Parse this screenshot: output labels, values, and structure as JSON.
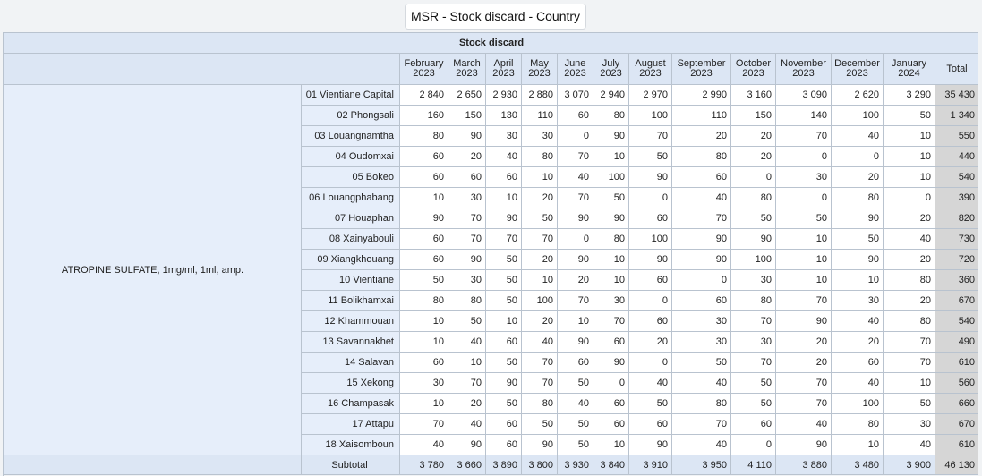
{
  "title": "MSR - Stock discard - Country",
  "table": {
    "group_header": "Stock discard",
    "months": [
      [
        "February",
        "2023"
      ],
      [
        "March",
        "2023"
      ],
      [
        "April",
        "2023"
      ],
      [
        "May",
        "2023"
      ],
      [
        "June",
        "2023"
      ],
      [
        "July",
        "2023"
      ],
      [
        "August",
        "2023"
      ],
      [
        "September",
        "2023"
      ],
      [
        "October",
        "2023"
      ],
      [
        "November",
        "2023"
      ],
      [
        "December",
        "2023"
      ],
      [
        "January",
        "2024"
      ]
    ],
    "total_label": "Total",
    "item": "ATROPINE SULFATE, 1mg/ml, 1ml, amp.",
    "rows": [
      {
        "district": "01 Vientiane Capital",
        "values": [
          "2 840",
          "2 650",
          "2 930",
          "2 880",
          "3 070",
          "2 940",
          "2 970",
          "2 990",
          "3 160",
          "3 090",
          "2 620",
          "3 290"
        ],
        "total": "35 430"
      },
      {
        "district": "02 Phongsali",
        "values": [
          "160",
          "150",
          "130",
          "110",
          "60",
          "80",
          "100",
          "110",
          "150",
          "140",
          "100",
          "50"
        ],
        "total": "1 340"
      },
      {
        "district": "03 Louangnamtha",
        "values": [
          "80",
          "90",
          "30",
          "30",
          "0",
          "90",
          "70",
          "20",
          "20",
          "70",
          "40",
          "10"
        ],
        "total": "550"
      },
      {
        "district": "04 Oudomxai",
        "values": [
          "60",
          "20",
          "40",
          "80",
          "70",
          "10",
          "50",
          "80",
          "20",
          "0",
          "0",
          "10"
        ],
        "total": "440"
      },
      {
        "district": "05 Bokeo",
        "values": [
          "60",
          "60",
          "60",
          "10",
          "40",
          "100",
          "90",
          "60",
          "0",
          "30",
          "20",
          "10"
        ],
        "total": "540"
      },
      {
        "district": "06 Louangphabang",
        "values": [
          "10",
          "30",
          "10",
          "20",
          "70",
          "50",
          "0",
          "40",
          "80",
          "0",
          "80",
          "0"
        ],
        "total": "390"
      },
      {
        "district": "07 Houaphan",
        "values": [
          "90",
          "70",
          "90",
          "50",
          "90",
          "90",
          "60",
          "70",
          "50",
          "50",
          "90",
          "20"
        ],
        "total": "820"
      },
      {
        "district": "08 Xainyabouli",
        "values": [
          "60",
          "70",
          "70",
          "70",
          "0",
          "80",
          "100",
          "90",
          "90",
          "10",
          "50",
          "40"
        ],
        "total": "730"
      },
      {
        "district": "09 Xiangkhouang",
        "values": [
          "60",
          "90",
          "50",
          "20",
          "90",
          "10",
          "90",
          "90",
          "100",
          "10",
          "90",
          "20"
        ],
        "total": "720"
      },
      {
        "district": "10 Vientiane",
        "values": [
          "50",
          "30",
          "50",
          "10",
          "20",
          "10",
          "60",
          "0",
          "30",
          "10",
          "10",
          "80"
        ],
        "total": "360"
      },
      {
        "district": "11 Bolikhamxai",
        "values": [
          "80",
          "80",
          "50",
          "100",
          "70",
          "30",
          "0",
          "60",
          "80",
          "70",
          "30",
          "20"
        ],
        "total": "670"
      },
      {
        "district": "12 Khammouan",
        "values": [
          "10",
          "50",
          "10",
          "20",
          "10",
          "70",
          "60",
          "30",
          "70",
          "90",
          "40",
          "80"
        ],
        "total": "540"
      },
      {
        "district": "13 Savannakhet",
        "values": [
          "10",
          "40",
          "60",
          "40",
          "90",
          "60",
          "20",
          "30",
          "30",
          "20",
          "20",
          "70"
        ],
        "total": "490"
      },
      {
        "district": "14 Salavan",
        "values": [
          "60",
          "10",
          "50",
          "70",
          "60",
          "90",
          "0",
          "50",
          "70",
          "20",
          "60",
          "70"
        ],
        "total": "610"
      },
      {
        "district": "15 Xekong",
        "values": [
          "30",
          "70",
          "90",
          "70",
          "50",
          "0",
          "40",
          "40",
          "50",
          "70",
          "40",
          "10"
        ],
        "total": "560"
      },
      {
        "district": "16 Champasak",
        "values": [
          "10",
          "20",
          "50",
          "80",
          "40",
          "60",
          "50",
          "80",
          "50",
          "70",
          "100",
          "50"
        ],
        "total": "660"
      },
      {
        "district": "17 Attapu",
        "values": [
          "70",
          "40",
          "60",
          "50",
          "50",
          "60",
          "60",
          "70",
          "60",
          "40",
          "80",
          "30"
        ],
        "total": "670"
      },
      {
        "district": "18 Xaisomboun",
        "values": [
          "40",
          "90",
          "60",
          "90",
          "50",
          "10",
          "90",
          "40",
          "0",
          "90",
          "10",
          "40"
        ],
        "total": "610"
      }
    ],
    "subtotal": {
      "label": "Subtotal",
      "values": [
        "3 780",
        "3 660",
        "3 890",
        "3 800",
        "3 930",
        "3 840",
        "3 910",
        "3 950",
        "4 110",
        "3 880",
        "3 480",
        "3 900"
      ],
      "total": "46 130"
    }
  }
}
